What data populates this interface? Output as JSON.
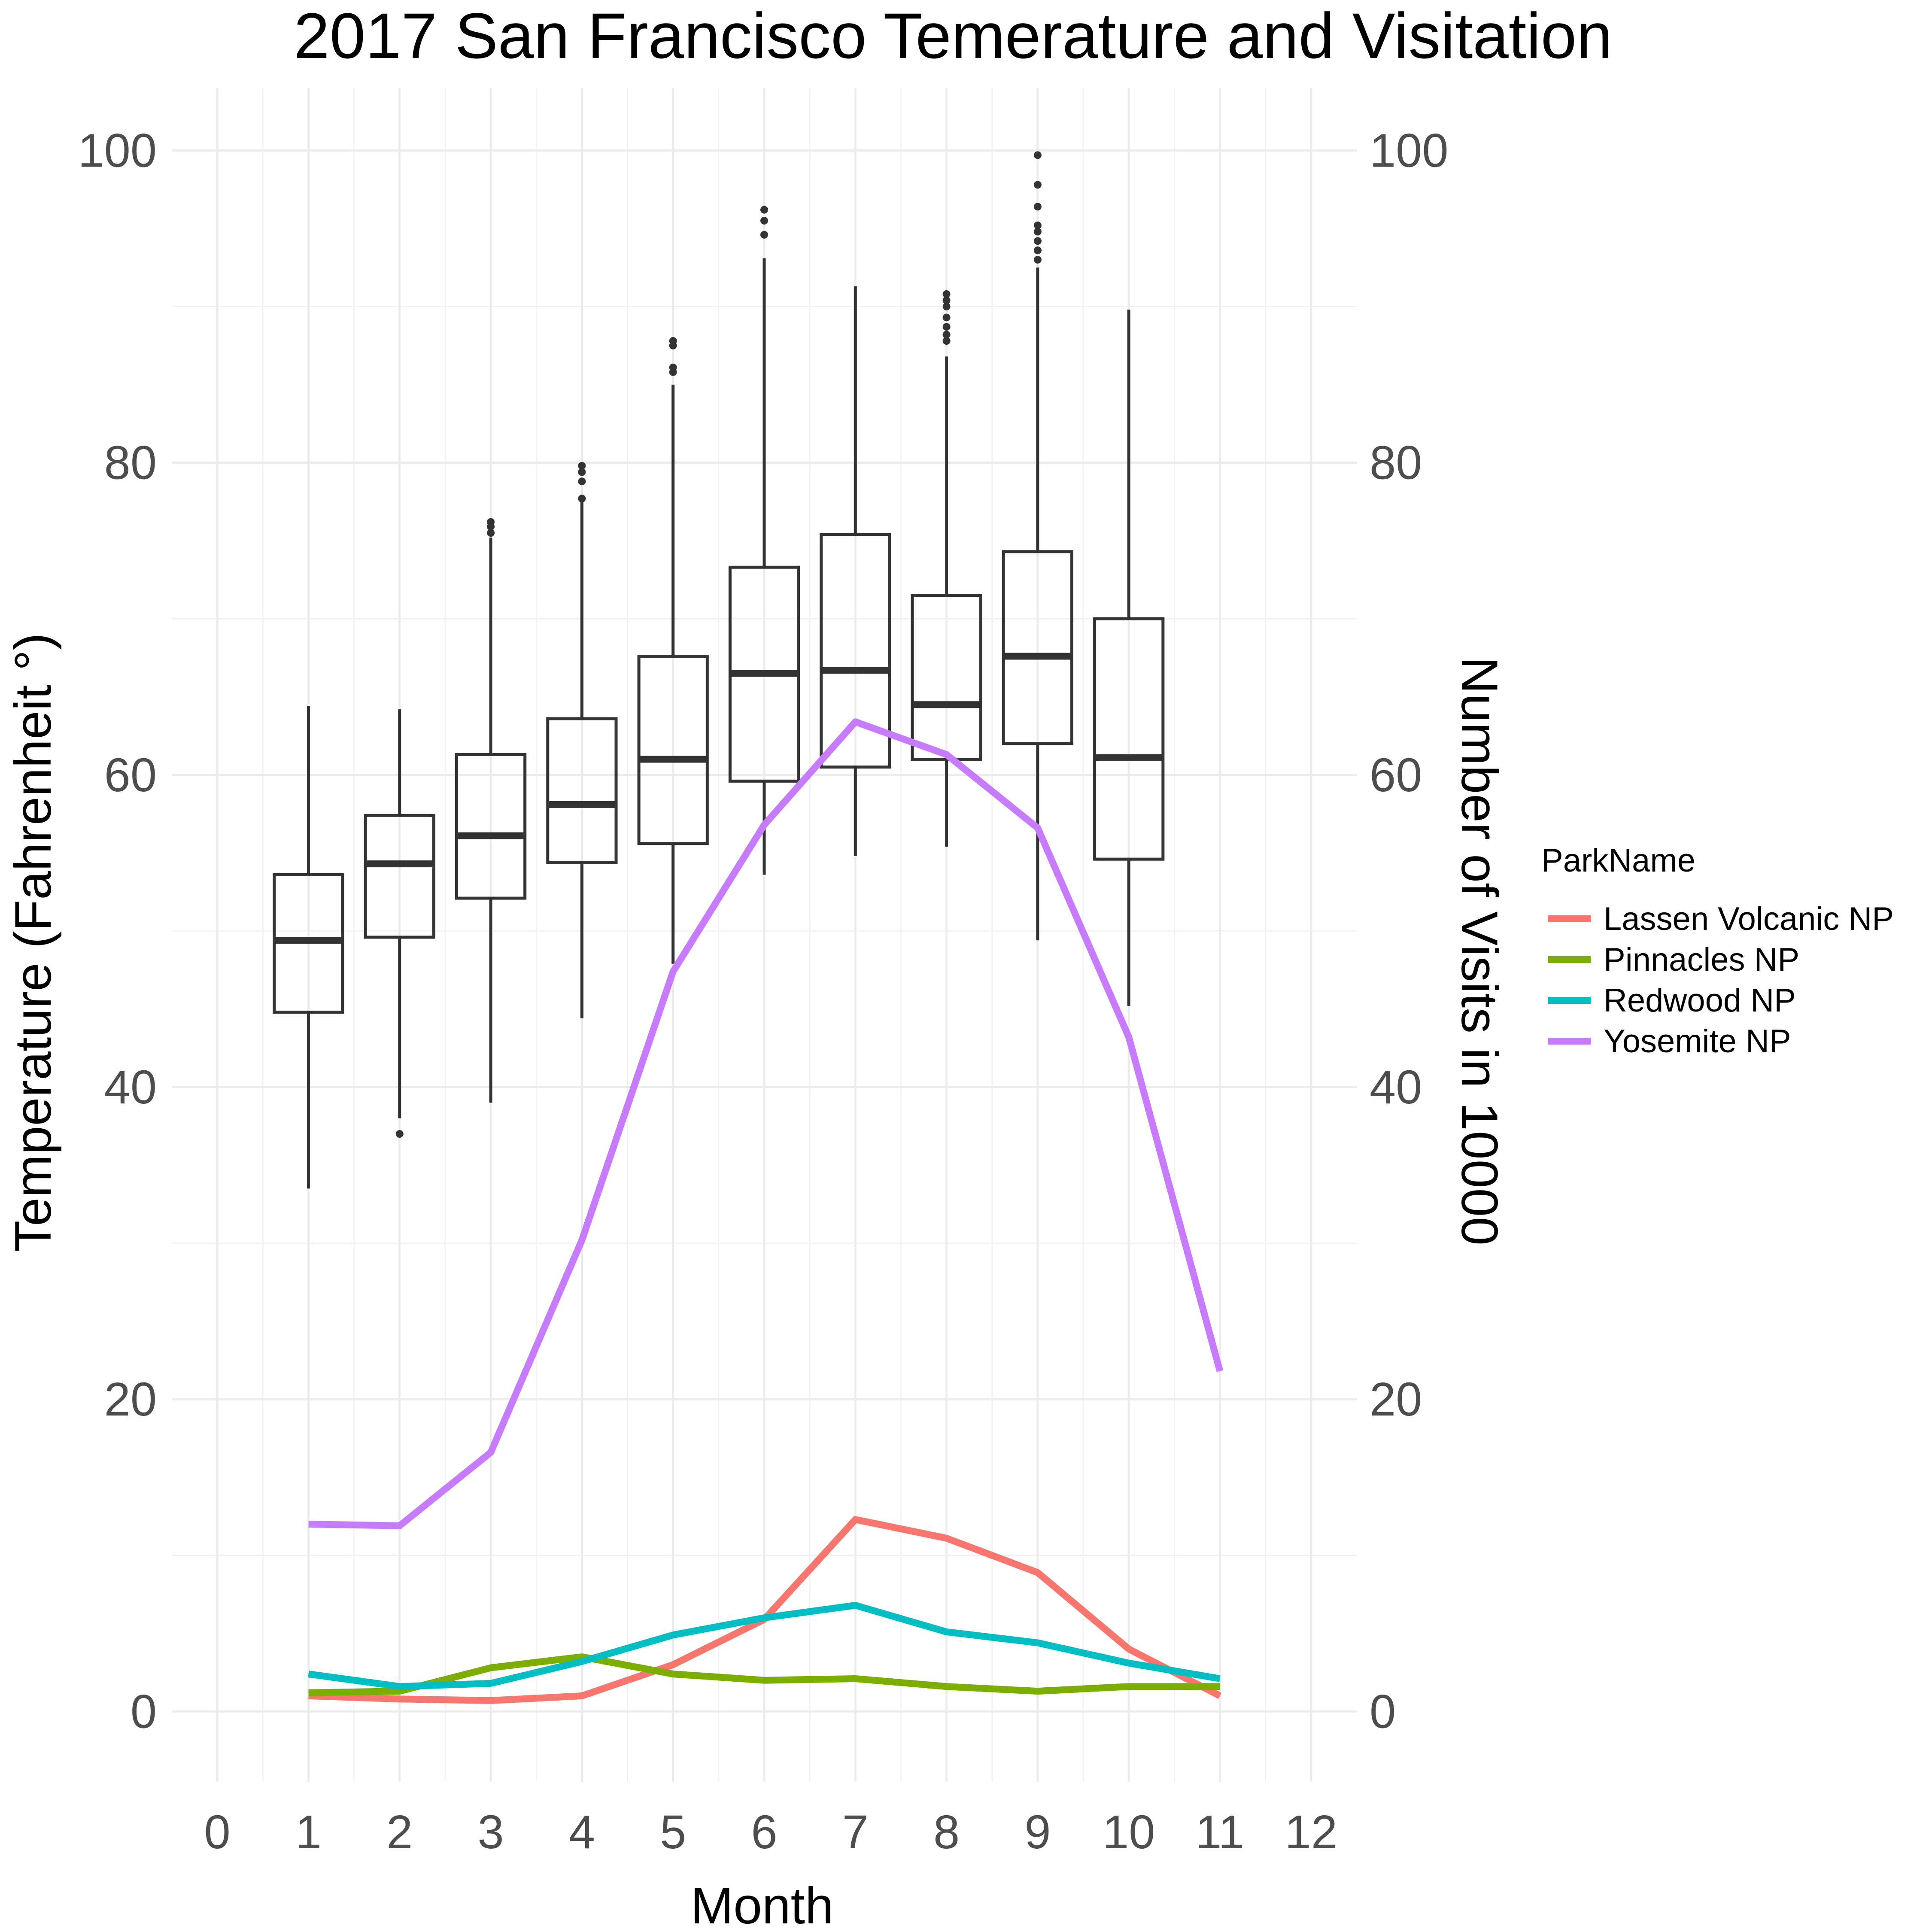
{
  "chart_data": {
    "type": "boxplot+line",
    "title": "2017 San Francisco Temerature and Visitation",
    "xlabel": "Month",
    "ylabel_left": "Temperature (Fahrenheit °)",
    "ylabel_right": "Number of Visits in 10000",
    "xlim": [
      -0.5,
      12.5
    ],
    "ylim": [
      -4.5,
      104
    ],
    "x_ticks": [
      0,
      1,
      2,
      3,
      4,
      5,
      6,
      7,
      8,
      9,
      10,
      11,
      12
    ],
    "x_tick_labels": [
      "0",
      "1",
      "2",
      "3",
      "4",
      "5",
      "6",
      "7",
      "8",
      "9",
      "10",
      "11",
      "12"
    ],
    "y_ticks": [
      0,
      20,
      40,
      60,
      80,
      100
    ],
    "y_tick_labels": [
      "0",
      "20",
      "40",
      "60",
      "80",
      "100"
    ],
    "y_minor_ticks": [
      10,
      30,
      50,
      70,
      90
    ],
    "grid": true,
    "legend_title": "ParkName",
    "legend_position": "right",
    "boxplots": [
      {
        "month": 1,
        "min": 33.5,
        "q1": 44.8,
        "median": 49.4,
        "q3": 53.6,
        "max": 64.4,
        "outliers": []
      },
      {
        "month": 2,
        "min": 38.0,
        "q1": 49.6,
        "median": 54.3,
        "q3": 57.4,
        "max": 64.2,
        "outliers": [
          37.0
        ]
      },
      {
        "month": 3,
        "min": 39.0,
        "q1": 52.1,
        "median": 56.1,
        "q3": 61.3,
        "max": 75.2,
        "outliers": [
          75.5,
          75.9,
          76.2
        ]
      },
      {
        "month": 4,
        "min": 44.4,
        "q1": 54.4,
        "median": 58.1,
        "q3": 63.6,
        "max": 77.6,
        "outliers": [
          77.7,
          78.8,
          79.4,
          79.8
        ]
      },
      {
        "month": 5,
        "min": 47.9,
        "q1": 55.6,
        "median": 61.0,
        "q3": 67.6,
        "max": 85.0,
        "outliers": [
          85.8,
          86.1,
          87.5,
          87.8
        ]
      },
      {
        "month": 6,
        "min": 53.6,
        "q1": 59.6,
        "median": 66.5,
        "q3": 73.3,
        "max": 93.1,
        "outliers": [
          94.6,
          95.5,
          96.2
        ]
      },
      {
        "month": 7,
        "min": 54.8,
        "q1": 60.5,
        "median": 66.7,
        "q3": 75.4,
        "max": 91.3,
        "outliers": []
      },
      {
        "month": 8,
        "min": 55.4,
        "q1": 61.0,
        "median": 64.5,
        "q3": 71.5,
        "max": 86.8,
        "outliers": [
          87.8,
          88.2,
          88.7,
          89.3,
          90.0,
          90.4,
          90.8
        ]
      },
      {
        "month": 9,
        "min": 49.4,
        "q1": 62.0,
        "median": 67.6,
        "q3": 74.3,
        "max": 92.5,
        "outliers": [
          93.0,
          93.6,
          94.2,
          94.8,
          95.2,
          96.4,
          97.8,
          99.7
        ]
      },
      {
        "month": 10,
        "min": 45.2,
        "q1": 54.6,
        "median": 61.1,
        "q3": 70.0,
        "max": 89.8,
        "outliers": []
      }
    ],
    "x": [
      1,
      2,
      3,
      4,
      5,
      6,
      7,
      8,
      9,
      10,
      11
    ],
    "series": [
      {
        "name": "Lassen Volcanic NP",
        "color": "#F8766D",
        "values": [
          1.0,
          0.8,
          0.7,
          1.0,
          3.0,
          5.9,
          12.3,
          11.1,
          8.9,
          4.0,
          1.0
        ]
      },
      {
        "name": "Pinnacles NP",
        "color": "#7CAE00",
        "values": [
          1.2,
          1.3,
          2.8,
          3.5,
          2.4,
          2.0,
          2.1,
          1.6,
          1.3,
          1.6,
          1.6
        ]
      },
      {
        "name": "Redwood NP",
        "color": "#00BFC4",
        "values": [
          2.4,
          1.6,
          1.8,
          3.2,
          4.9,
          6.0,
          6.8,
          5.1,
          4.4,
          3.1,
          2.1
        ]
      },
      {
        "name": "Yosemite NP",
        "color": "#C77CFF",
        "values": [
          12.0,
          11.9,
          16.6,
          30.2,
          47.4,
          56.8,
          63.4,
          61.3,
          56.6,
          43.2,
          21.8
        ]
      }
    ]
  }
}
